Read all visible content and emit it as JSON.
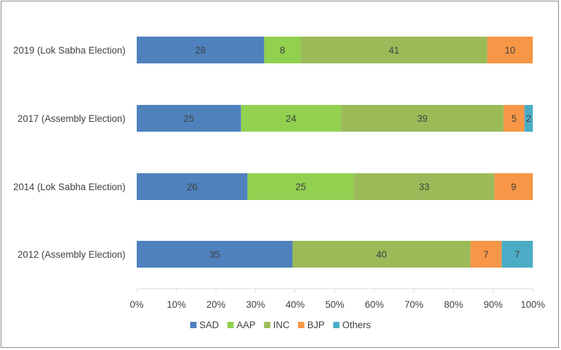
{
  "chart_data": {
    "type": "bar",
    "orientation": "horizontal",
    "stacked": "percent",
    "categories": [
      "2019 (Lok Sabha Election)",
      "2017 (Assembly Election)",
      "2014 (Lok Sabha Election)",
      "2012 (Assembly Election)"
    ],
    "series": [
      {
        "name": "SAD",
        "color": "#4f81bd",
        "values": [
          28,
          25,
          26,
          35
        ]
      },
      {
        "name": "AAP",
        "color": "#92d050",
        "values": [
          8,
          24,
          25,
          null
        ]
      },
      {
        "name": "INC",
        "color": "#9bbb59",
        "values": [
          41,
          39,
          33,
          40
        ]
      },
      {
        "name": "BJP",
        "color": "#f79646",
        "values": [
          10,
          5,
          9,
          7
        ]
      },
      {
        "name": "Others",
        "color": "#4bacc6",
        "values": [
          null,
          2,
          null,
          7
        ]
      }
    ],
    "xlim": [
      0,
      100
    ],
    "xticks": [
      "0%",
      "10%",
      "20%",
      "30%",
      "40%",
      "50%",
      "60%",
      "70%",
      "80%",
      "90%",
      "100%"
    ],
    "grid": false,
    "legend_position": "bottom"
  }
}
